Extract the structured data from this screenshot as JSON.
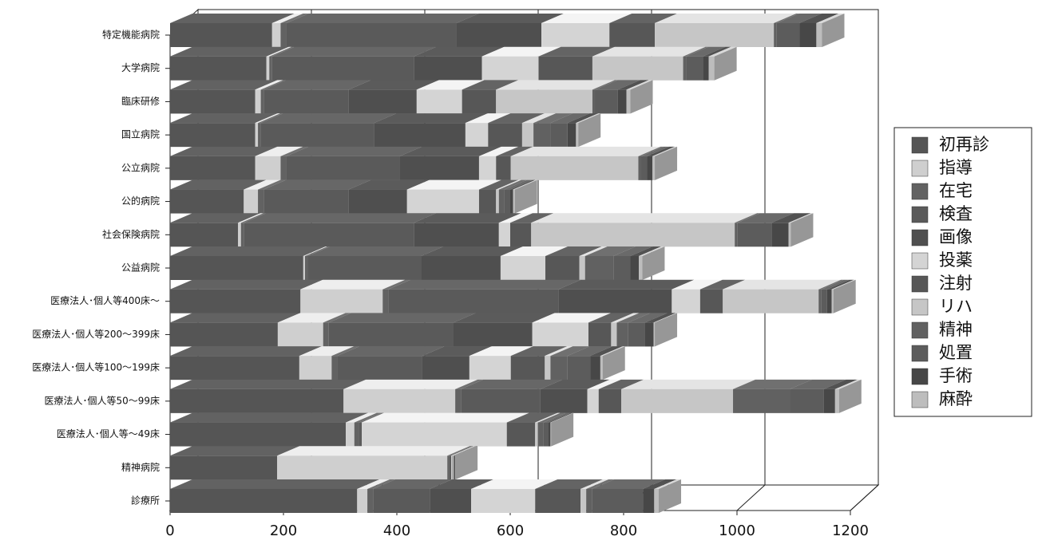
{
  "chart_data": {
    "type": "bar3d_stacked_horizontal",
    "categories": [
      "特定機能病院",
      "大学病院",
      "臨床研修",
      "国立病院",
      "公立病院",
      "公的病院",
      "社会保険病院",
      "公益病院",
      "医療法人･個人等400床～",
      "医療法人･個人等200～399床",
      "医療法人･個人等100～199床",
      "医療法人･個人等50～99床",
      "医療法人･個人等～49床",
      "精神病院",
      "診療所"
    ],
    "series": [
      {
        "name": "初再診",
        "color": "#555555",
        "values": [
          180,
          170,
          150,
          150,
          150,
          130,
          120,
          235,
          230,
          190,
          228,
          306,
          310,
          189,
          330
        ]
      },
      {
        "name": "指導",
        "color": "#cfcfcf",
        "values": [
          15,
          5,
          10,
          5,
          45,
          25,
          5,
          3,
          145,
          80,
          57,
          197,
          15,
          300,
          18
        ]
      },
      {
        "name": "在宅",
        "color": "#626262",
        "values": [
          10,
          5,
          5,
          5,
          10,
          10,
          5,
          5,
          10,
          10,
          10,
          10,
          8,
          2,
          10
        ]
      },
      {
        "name": "検査",
        "color": "#5a5a5a",
        "values": [
          300,
          250,
          150,
          200,
          200,
          150,
          300,
          200,
          300,
          220,
          150,
          140,
          3,
          3,
          100
        ]
      },
      {
        "name": "画像",
        "color": "#4f4f4f",
        "values": [
          150,
          120,
          120,
          161,
          140,
          103,
          150,
          140,
          200,
          139,
          83,
          83,
          2,
          2,
          73
        ]
      },
      {
        "name": "投薬",
        "color": "#d4d4d4",
        "values": [
          120,
          100,
          80,
          40,
          30,
          127,
          20,
          79,
          50,
          99,
          73,
          20,
          256,
          2,
          113
        ]
      },
      {
        "name": "注射",
        "color": "#575757",
        "values": [
          80,
          95,
          60,
          60,
          26,
          30,
          37,
          60,
          40,
          40,
          60,
          40,
          50,
          1,
          80
        ]
      },
      {
        "name": "リハ",
        "color": "#c6c6c6",
        "values": [
          210,
          160,
          170,
          20,
          225,
          5,
          359,
          10,
          169,
          10,
          10,
          197,
          5,
          1,
          10
        ]
      },
      {
        "name": "精神",
        "color": "#616161",
        "values": [
          5,
          5,
          5,
          30,
          5,
          10,
          5,
          50,
          5,
          20,
          30,
          100,
          10,
          1,
          10
        ]
      },
      {
        "name": "処置",
        "color": "#5c5c5c",
        "values": [
          40,
          30,
          40,
          30,
          10,
          10,
          60,
          30,
          10,
          30,
          40,
          60,
          8,
          1,
          90
        ]
      },
      {
        "name": "手術",
        "color": "#474747",
        "values": [
          30,
          10,
          15,
          15,
          10,
          5,
          30,
          15,
          8,
          15,
          18,
          20,
          4,
          1,
          20
        ]
      },
      {
        "name": "麻酔",
        "color": "#bdbdbd",
        "values": [
          10,
          10,
          7,
          4,
          4,
          3,
          4,
          6,
          3,
          2,
          4,
          7,
          1,
          0,
          8
        ]
      }
    ],
    "xlim": [
      0,
      1200
    ],
    "xticks": [
      0,
      200,
      400,
      600,
      800,
      1000,
      1200
    ],
    "grid": true,
    "legend": "right"
  }
}
